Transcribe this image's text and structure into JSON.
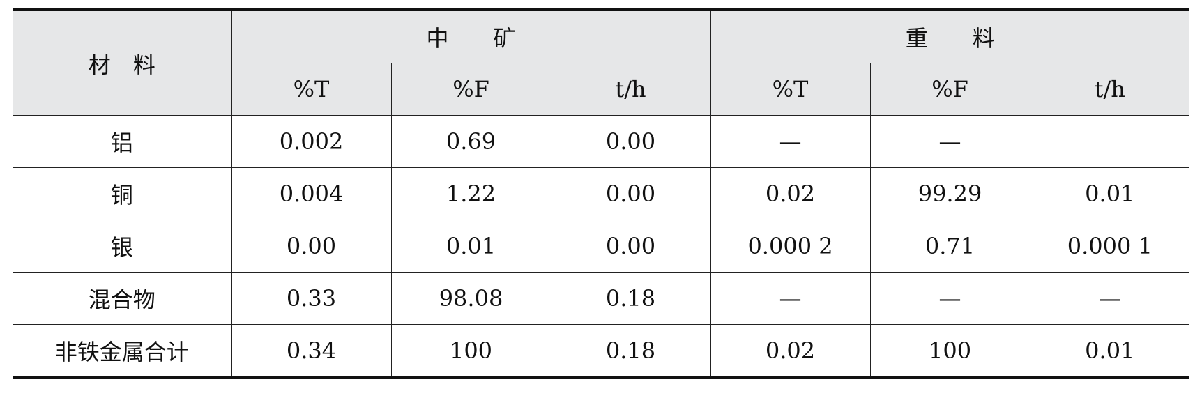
{
  "table": {
    "header": {
      "material": "材　料",
      "group1": "中　　矿",
      "group2": "重　　料",
      "sub": [
        "%T",
        "%F",
        "t/h",
        "%T",
        "%F",
        "t/h"
      ]
    },
    "rows": [
      {
        "name": "铝",
        "cells": [
          "0.002",
          "0.69",
          "0.00",
          "—",
          "—",
          ""
        ]
      },
      {
        "name": "铜",
        "cells": [
          "0.004",
          "1.22",
          "0.00",
          "0.02",
          "99.29",
          "0.01"
        ]
      },
      {
        "name": "银",
        "cells": [
          "0.00",
          "0.01",
          "0.00",
          "0.000 2",
          "0.71",
          "0.000 1"
        ]
      },
      {
        "name": "混合物",
        "cells": [
          "0.33",
          "98.08",
          "0.18",
          "—",
          "—",
          "—"
        ]
      },
      {
        "name": "非铁金属合计",
        "cells": [
          "0.34",
          "100",
          "0.18",
          "0.02",
          "100",
          "0.01"
        ]
      }
    ]
  }
}
